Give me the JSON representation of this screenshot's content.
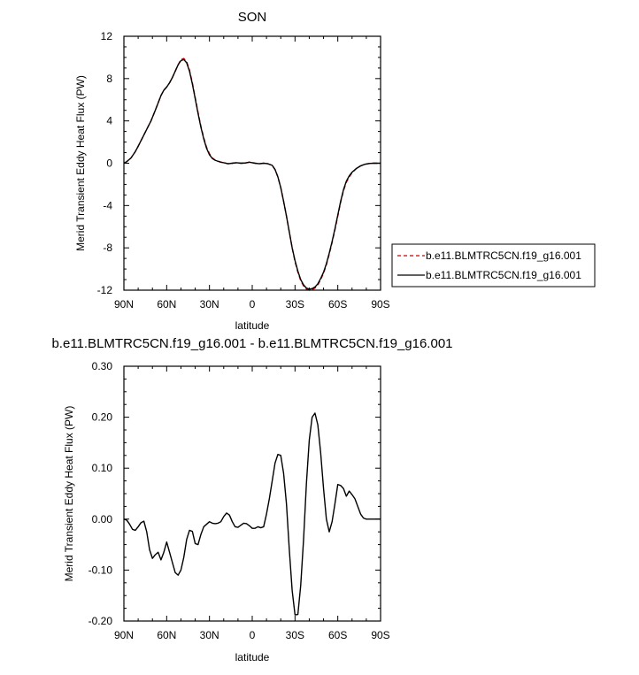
{
  "chart_data": [
    {
      "type": "line",
      "title": "SON",
      "xlabel": "latitude",
      "ylabel": "Merid Transient Eddy Heat Flux (PW)",
      "xlim": [
        90,
        -90
      ],
      "ylim": [
        -12,
        12
      ],
      "xticks": [
        {
          "value": 90,
          "label": "90N"
        },
        {
          "value": 60,
          "label": "60N"
        },
        {
          "value": 30,
          "label": "30N"
        },
        {
          "value": 0,
          "label": "0"
        },
        {
          "value": -30,
          "label": "30S"
        },
        {
          "value": -60,
          "label": "60S"
        },
        {
          "value": -90,
          "label": "90S"
        }
      ],
      "yticks": [
        {
          "value": 12,
          "label": "12"
        },
        {
          "value": 8,
          "label": "8"
        },
        {
          "value": 4,
          "label": "4"
        },
        {
          "value": 0,
          "label": "0"
        },
        {
          "value": -4,
          "label": "-4"
        },
        {
          "value": -8,
          "label": "-8"
        },
        {
          "value": -12,
          "label": "-12"
        }
      ],
      "legend_position": "right",
      "series": [
        {
          "name": "b.e11.BLMTRC5CN.f19_g16.001",
          "color": "#cc0000",
          "dash": "dashed",
          "x": [
            90,
            88,
            85,
            82,
            80,
            77,
            74,
            71,
            68,
            66,
            64,
            62,
            60,
            58,
            56,
            54,
            52,
            50,
            48,
            46,
            44,
            42,
            40,
            38,
            36,
            34,
            32,
            30,
            28,
            26,
            24,
            22,
            20,
            17,
            14,
            11,
            8,
            5,
            2,
            0,
            -2,
            -5,
            -8,
            -11,
            -14,
            -16,
            -18,
            -20,
            -22,
            -24,
            -26,
            -28,
            -30,
            -32,
            -34,
            -36,
            -38,
            -40,
            -42,
            -44,
            -46,
            -48,
            -50,
            -52,
            -54,
            -56,
            -58,
            -60,
            -62,
            -64,
            -66,
            -68,
            -70,
            -73,
            -76,
            -79,
            -82,
            -85,
            -88,
            -90
          ],
          "y": [
            0.0,
            0.15,
            0.5,
            1.1,
            1.6,
            2.4,
            3.2,
            4.0,
            5.0,
            5.7,
            6.4,
            6.9,
            7.2,
            7.6,
            8.1,
            8.7,
            9.3,
            9.8,
            9.9,
            9.6,
            8.8,
            7.6,
            6.2,
            4.8,
            3.5,
            2.4,
            1.5,
            0.9,
            0.5,
            0.3,
            0.2,
            0.1,
            0.05,
            -0.05,
            0.0,
            0.05,
            0.0,
            0.02,
            0.1,
            0.05,
            0.0,
            -0.05,
            0.0,
            -0.05,
            -0.2,
            -0.6,
            -1.3,
            -2.3,
            -3.6,
            -5.0,
            -6.5,
            -8.0,
            -9.3,
            -10.3,
            -11.1,
            -11.6,
            -11.9,
            -12.0,
            -11.95,
            -11.8,
            -11.5,
            -11.0,
            -10.4,
            -9.6,
            -8.6,
            -7.5,
            -6.3,
            -5.0,
            -3.7,
            -2.6,
            -1.8,
            -1.3,
            -0.9,
            -0.5,
            -0.25,
            -0.1,
            -0.03,
            0.0,
            0.0,
            0.0
          ]
        },
        {
          "name": "b.e11.BLMTRC5CN.f19_g16.001",
          "color": "#000000",
          "dash": "solid",
          "x": [
            90,
            88,
            85,
            82,
            80,
            77,
            74,
            71,
            68,
            66,
            64,
            62,
            60,
            58,
            56,
            54,
            52,
            50,
            48,
            46,
            44,
            42,
            40,
            38,
            36,
            34,
            32,
            30,
            28,
            26,
            24,
            22,
            20,
            17,
            14,
            11,
            8,
            5,
            2,
            0,
            -2,
            -5,
            -8,
            -11,
            -14,
            -16,
            -18,
            -20,
            -22,
            -24,
            -26,
            -28,
            -30,
            -32,
            -34,
            -36,
            -38,
            -40,
            -42,
            -44,
            -46,
            -48,
            -50,
            -52,
            -54,
            -56,
            -58,
            -60,
            -62,
            -64,
            -66,
            -68,
            -70,
            -73,
            -76,
            -79,
            -82,
            -85,
            -88,
            -90
          ],
          "y": [
            0.0,
            0.15,
            0.5,
            1.1,
            1.6,
            2.4,
            3.2,
            4.0,
            5.0,
            5.7,
            6.4,
            6.9,
            7.2,
            7.6,
            8.1,
            8.7,
            9.3,
            9.7,
            9.8,
            9.5,
            8.7,
            7.5,
            6.1,
            4.7,
            3.4,
            2.3,
            1.4,
            0.8,
            0.45,
            0.28,
            0.18,
            0.1,
            0.05,
            -0.05,
            0.0,
            0.05,
            0.0,
            0.02,
            0.1,
            0.05,
            0.0,
            -0.05,
            0.0,
            -0.05,
            -0.2,
            -0.6,
            -1.3,
            -2.3,
            -3.6,
            -5.0,
            -6.5,
            -8.0,
            -9.2,
            -10.2,
            -11.0,
            -11.5,
            -11.8,
            -11.9,
            -11.85,
            -11.7,
            -11.4,
            -10.9,
            -10.3,
            -9.5,
            -8.5,
            -7.4,
            -6.2,
            -4.9,
            -3.6,
            -2.5,
            -1.7,
            -1.2,
            -0.85,
            -0.5,
            -0.25,
            -0.1,
            -0.03,
            0.0,
            0.0,
            0.0
          ]
        }
      ]
    },
    {
      "type": "line",
      "title": "b.e11.BLMTRC5CN.f19_g16.001 - b.e11.BLMTRC5CN.f19_g16.001",
      "xlabel": "latitude",
      "ylabel": "Merid Transient Eddy Heat Flux (PW)",
      "xlim": [
        90,
        -90
      ],
      "ylim": [
        -0.2,
        0.3
      ],
      "xticks": [
        {
          "value": 90,
          "label": "90N"
        },
        {
          "value": 60,
          "label": "60N"
        },
        {
          "value": 30,
          "label": "30N"
        },
        {
          "value": 0,
          "label": "0"
        },
        {
          "value": -30,
          "label": "30S"
        },
        {
          "value": -60,
          "label": "60S"
        },
        {
          "value": -90,
          "label": "90S"
        }
      ],
      "yticks": [
        {
          "value": 0.3,
          "label": "0.30"
        },
        {
          "value": 0.2,
          "label": "0.20"
        },
        {
          "value": 0.1,
          "label": "0.10"
        },
        {
          "value": 0.0,
          "label": "0.00"
        },
        {
          "value": -0.1,
          "label": "-0.10"
        },
        {
          "value": -0.2,
          "label": "-0.20"
        }
      ],
      "series": [
        {
          "color": "#000000",
          "dash": "solid",
          "x": [
            90,
            88,
            86,
            84,
            82,
            80,
            78,
            76,
            74,
            72,
            70,
            68,
            66,
            64,
            62,
            60,
            58,
            56,
            54,
            52,
            50,
            48,
            46,
            44,
            42,
            40,
            38,
            36,
            34,
            32,
            30,
            28,
            26,
            24,
            22,
            20,
            18,
            16,
            14,
            12,
            10,
            8,
            6,
            4,
            2,
            0,
            -2,
            -4,
            -6,
            -8,
            -10,
            -12,
            -14,
            -16,
            -18,
            -20,
            -22,
            -24,
            -26,
            -28,
            -30,
            -32,
            -34,
            -36,
            -38,
            -40,
            -42,
            -44,
            -46,
            -48,
            -50,
            -52,
            -54,
            -56,
            -58,
            -60,
            -62,
            -64,
            -66,
            -68,
            -70,
            -72,
            -74,
            -76,
            -78,
            -80,
            -82,
            -84,
            -86,
            -88,
            -90
          ],
          "y": [
            0.0,
            -0.002,
            -0.01,
            -0.02,
            -0.022,
            -0.015,
            -0.007,
            -0.004,
            -0.025,
            -0.06,
            -0.077,
            -0.07,
            -0.065,
            -0.08,
            -0.065,
            -0.045,
            -0.065,
            -0.085,
            -0.105,
            -0.11,
            -0.1,
            -0.075,
            -0.04,
            -0.022,
            -0.024,
            -0.048,
            -0.05,
            -0.03,
            -0.015,
            -0.01,
            -0.005,
            -0.008,
            -0.009,
            -0.008,
            -0.005,
            0.005,
            0.012,
            0.008,
            -0.005,
            -0.015,
            -0.016,
            -0.012,
            -0.008,
            -0.009,
            -0.013,
            -0.018,
            -0.018,
            -0.015,
            -0.017,
            -0.015,
            0.01,
            0.04,
            0.075,
            0.11,
            0.127,
            0.125,
            0.09,
            0.03,
            -0.06,
            -0.14,
            -0.188,
            -0.187,
            -0.13,
            -0.04,
            0.07,
            0.155,
            0.2,
            0.208,
            0.185,
            0.13,
            0.06,
            0.0,
            -0.025,
            -0.005,
            0.03,
            0.068,
            0.066,
            0.06,
            0.045,
            0.055,
            0.048,
            0.04,
            0.025,
            0.01,
            0.002,
            0.0,
            0.0,
            0.0,
            0.0,
            0.0,
            0.0
          ]
        }
      ]
    }
  ]
}
